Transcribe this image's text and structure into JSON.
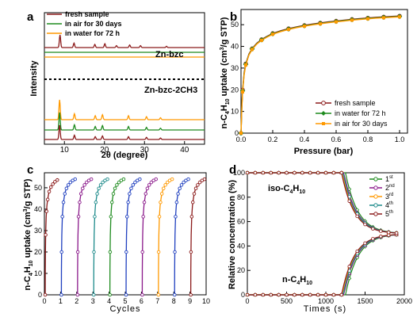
{
  "chart_data": [
    {
      "panel": "a",
      "type": "line",
      "xlabel": "2θ (degree)",
      "ylabel": "Intensity",
      "xlim": [
        5,
        45
      ],
      "xticks": [
        "10",
        "20",
        "30",
        "40"
      ],
      "legend": {
        "placement": "top-left",
        "entries": [
          "fresh sample",
          "in air for 30 days",
          "in water for 72 h"
        ]
      },
      "annotations": [
        "Zn-bzc",
        "Zn-bzc-2CH3"
      ],
      "series": [
        {
          "name": "fresh sample",
          "color": "#8b1a1a",
          "sample": "Zn-bzc",
          "peaks": [
            {
              "x": 8.9,
              "h": 1.0
            },
            {
              "x": 12.4,
              "h": 0.35
            },
            {
              "x": 17.6,
              "h": 0.25
            },
            {
              "x": 20.1,
              "h": 0.3
            },
            {
              "x": 23.0,
              "h": 0.15
            },
            {
              "x": 26.3,
              "h": 0.2
            },
            {
              "x": 29.0,
              "h": 0.15
            },
            {
              "x": 35.5,
              "h": 0.1
            }
          ]
        },
        {
          "name": "in air for 30 days",
          "color": "#1e8b1e",
          "sample": "Zn-bzc",
          "peaks": []
        },
        {
          "name": "in water for 72 h",
          "color": "#ff9900",
          "sample": "Zn-bzc",
          "peaks": []
        },
        {
          "name": "in water for 72 h",
          "color": "#ff9900",
          "sample": "Zn-bzc-2CH3",
          "peaks": [
            {
              "x": 8.8,
              "h": 1.0
            },
            {
              "x": 12.5,
              "h": 0.3
            },
            {
              "x": 17.7,
              "h": 0.2
            },
            {
              "x": 19.5,
              "h": 0.25
            },
            {
              "x": 26.0,
              "h": 0.2
            },
            {
              "x": 30.5,
              "h": 0.15
            },
            {
              "x": 34.0,
              "h": 0.1
            }
          ]
        },
        {
          "name": "in air for 30 days",
          "color": "#1e8b1e",
          "sample": "Zn-bzc-2CH3",
          "peaks": [
            {
              "x": 8.8,
              "h": 1.0
            },
            {
              "x": 12.5,
              "h": 0.3
            },
            {
              "x": 17.7,
              "h": 0.2
            },
            {
              "x": 19.5,
              "h": 0.25
            },
            {
              "x": 26.0,
              "h": 0.2
            },
            {
              "x": 30.5,
              "h": 0.15
            },
            {
              "x": 34.0,
              "h": 0.1
            }
          ]
        },
        {
          "name": "fresh sample",
          "color": "#8b1a1a",
          "sample": "Zn-bzc-2CH3",
          "peaks": [
            {
              "x": 8.8,
              "h": 1.0
            },
            {
              "x": 12.5,
              "h": 0.3
            },
            {
              "x": 17.7,
              "h": 0.2
            },
            {
              "x": 19.5,
              "h": 0.25
            },
            {
              "x": 26.0,
              "h": 0.2
            },
            {
              "x": 30.5,
              "h": 0.15
            },
            {
              "x": 34.0,
              "h": 0.1
            }
          ]
        }
      ]
    },
    {
      "panel": "b",
      "type": "line",
      "xlabel": "Pressure (bar)",
      "ylabel": "n-C4H10 uptake (cm3/g STP)",
      "xlim": [
        0,
        1.05
      ],
      "ylim": [
        0,
        57
      ],
      "xticks": [
        "0.0",
        "0.2",
        "0.4",
        "0.6",
        "0.8",
        "1.0"
      ],
      "yticks": [
        "0",
        "10",
        "20",
        "30",
        "40",
        "50"
      ],
      "legend": {
        "placement": "bottom-right",
        "entries": [
          "fresh sample",
          "in water for 72 h",
          "in air for 30 days"
        ]
      },
      "x": [
        0,
        0.005,
        0.01,
        0.02,
        0.03,
        0.05,
        0.07,
        0.1,
        0.13,
        0.16,
        0.2,
        0.25,
        0.3,
        0.35,
        0.4,
        0.45,
        0.5,
        0.55,
        0.6,
        0.65,
        0.7,
        0.75,
        0.8,
        0.85,
        0.9,
        0.95,
        1.0
      ],
      "series": [
        {
          "name": "fresh sample",
          "color": "#8b1a1a",
          "values": [
            0,
            12,
            20,
            28,
            32,
            36.5,
            39,
            41.5,
            43.2,
            44.5,
            46,
            47.2,
            48.2,
            49,
            49.7,
            50.3,
            50.8,
            51.3,
            51.7,
            52.1,
            52.5,
            52.8,
            53.1,
            53.4,
            53.6,
            53.8,
            54
          ]
        },
        {
          "name": "in water for 72 h",
          "color": "#1e8b1e",
          "values": [
            0,
            11.5,
            19.5,
            27.5,
            31.7,
            36.2,
            38.8,
            41.3,
            43,
            44.3,
            45.8,
            47,
            48,
            48.8,
            49.5,
            50.1,
            50.6,
            51.1,
            51.5,
            51.9,
            52.3,
            52.6,
            52.9,
            53.2,
            53.4,
            53.6,
            53.8
          ]
        },
        {
          "name": "in air for 30 days",
          "color": "#ff9900",
          "values": [
            0,
            11,
            19,
            27,
            31.4,
            36,
            38.6,
            41.1,
            42.8,
            44.1,
            45.6,
            46.8,
            47.8,
            48.6,
            49.3,
            49.9,
            50.4,
            50.9,
            51.3,
            51.7,
            52.1,
            52.4,
            52.7,
            53,
            53.2,
            53.4,
            53.6
          ]
        }
      ]
    },
    {
      "panel": "c",
      "type": "line",
      "xlabel": "Cycles",
      "ylabel": "n-C4H10 uptake (cm3/g STP)",
      "xlim": [
        0,
        10
      ],
      "ylim": [
        0,
        57
      ],
      "xticks": [
        "0",
        "1",
        "2",
        "3",
        "4",
        "5",
        "6",
        "7",
        "8",
        "9",
        "10"
      ],
      "yticks": [
        "0",
        "10",
        "20",
        "30",
        "40",
        "50"
      ],
      "cycle_uptake": [
        0,
        12,
        20,
        28,
        32,
        36.5,
        39,
        41.5,
        43.2,
        44.5,
        46,
        47.2,
        48.2,
        49,
        49.7,
        50.3,
        50.8,
        51.3,
        51.7,
        52.1,
        52.5,
        52.8,
        53.1,
        53.4,
        53.6,
        53.8,
        54
      ],
      "series": [
        {
          "name": "",
          "color": "#8b1a1a",
          "start": 0
        },
        {
          "name": "",
          "color": "#1f3fbf",
          "start": 1
        },
        {
          "name": "",
          "color": "#8b1a8b",
          "start": 2
        },
        {
          "name": "",
          "color": "#1e8b8b",
          "start": 3
        },
        {
          "name": "",
          "color": "#1e8b1e",
          "start": 4
        },
        {
          "name": "",
          "color": "#1f3fbf",
          "start": 5
        },
        {
          "name": "",
          "color": "#8b1a8b",
          "start": 6
        },
        {
          "name": "",
          "color": "#ff9900",
          "start": 7
        },
        {
          "name": "",
          "color": "#1f3fbf",
          "start": 8
        },
        {
          "name": "",
          "color": "#8b1a1a",
          "start": 9
        }
      ]
    },
    {
      "panel": "d",
      "type": "line",
      "xlabel": "Times (s)",
      "ylabel": "Relative concentration (%)",
      "xlim": [
        0,
        2000
      ],
      "ylim": [
        0,
        100
      ],
      "xticks": [
        "0",
        "500",
        "1000",
        "1500",
        "2000"
      ],
      "yticks": [
        "0",
        "20",
        "40",
        "60",
        "80",
        "100"
      ],
      "annotations": [
        "iso-C4H10",
        "n-C4H10"
      ],
      "legend": {
        "placement": "top-right",
        "entries": [
          "1st",
          "2nd",
          "3rd",
          "4th",
          "5th"
        ]
      },
      "series": [
        {
          "name": "1st",
          "color": "#1e8b1e",
          "onset": 1250
        },
        {
          "name": "2nd",
          "color": "#8b1a8b",
          "onset": 1230
        },
        {
          "name": "3rd",
          "color": "#ff9900",
          "onset": 1210
        },
        {
          "name": "4th",
          "color": "#1e8b8b",
          "onset": 1220
        },
        {
          "name": "5th",
          "color": "#8b1a1a",
          "onset": 1200
        }
      ]
    }
  ],
  "panel_labels": [
    "a",
    "b",
    "c",
    "d"
  ]
}
